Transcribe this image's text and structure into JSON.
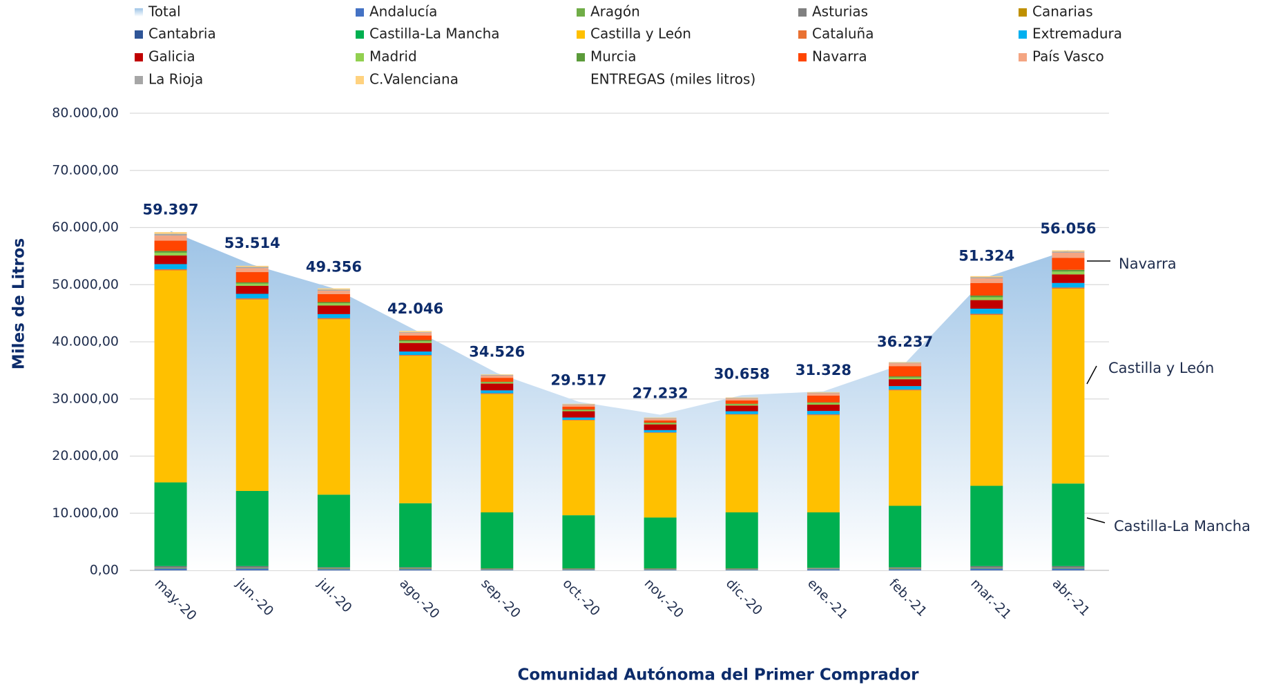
{
  "chart_data": {
    "type": "bar",
    "stacked": true,
    "categories": [
      "may.-20",
      "jun.-20",
      "jul.-20",
      "ago.-20",
      "sep.-20",
      "oct.-20",
      "nov.-20",
      "dic.-20",
      "ene.-21",
      "feb.-21",
      "mar.-21",
      "abr.-21"
    ],
    "series": [
      {
        "name": "Total",
        "type": "area",
        "color": "#9dc3e6",
        "values": [
          59397,
          53514,
          49356,
          42046,
          34526,
          29517,
          27232,
          30658,
          31328,
          36237,
          51324,
          56056
        ],
        "value_labels": [
          "59.397",
          "53.514",
          "49.356",
          "42.046",
          "34.526",
          "29.517",
          "27.232",
          "30.658",
          "31.328",
          "36.237",
          "51.324",
          "56.056"
        ]
      },
      {
        "name": "Andalucía",
        "color": "#4472c4",
        "values": [
          300,
          300,
          200,
          200,
          100,
          100,
          100,
          100,
          200,
          200,
          300,
          300
        ]
      },
      {
        "name": "Aragón",
        "color": "#70ad47",
        "values": [
          100,
          100,
          100,
          100,
          50,
          50,
          50,
          50,
          50,
          100,
          100,
          100
        ]
      },
      {
        "name": "Asturias",
        "color": "#808080",
        "values": [
          200,
          200,
          150,
          150,
          100,
          100,
          100,
          100,
          100,
          150,
          200,
          200
        ]
      },
      {
        "name": "Canarias",
        "color": "#bf9000",
        "values": [
          50,
          50,
          50,
          50,
          50,
          50,
          50,
          50,
          50,
          50,
          50,
          50
        ]
      },
      {
        "name": "Cantabria",
        "color": "#2f5597",
        "values": [
          100,
          100,
          50,
          50,
          50,
          50,
          50,
          50,
          50,
          50,
          100,
          100
        ]
      },
      {
        "name": "Castilla-La Mancha",
        "color": "#00b050",
        "values": [
          14650,
          13150,
          12700,
          11200,
          9800,
          9300,
          8900,
          9800,
          9700,
          10750,
          14050,
          14450
        ]
      },
      {
        "name": "Castilla y León",
        "color": "#ffc000",
        "values": [
          37100,
          33500,
          30700,
          25800,
          20700,
          16600,
          14800,
          17100,
          17000,
          20200,
          29900,
          34100
        ]
      },
      {
        "name": "Cataluña",
        "color": "#e97132",
        "values": [
          200,
          200,
          200,
          150,
          150,
          100,
          100,
          100,
          150,
          150,
          200,
          200
        ]
      },
      {
        "name": "Extremadura",
        "color": "#00b0f0",
        "values": [
          900,
          800,
          700,
          600,
          500,
          400,
          400,
          500,
          600,
          600,
          900,
          800
        ]
      },
      {
        "name": "Galicia",
        "color": "#c00000",
        "values": [
          1500,
          1400,
          1500,
          1500,
          1200,
          1100,
          1000,
          1000,
          1100,
          1200,
          1500,
          1500
        ]
      },
      {
        "name": "Madrid",
        "color": "#92d050",
        "values": [
          500,
          400,
          400,
          300,
          200,
          200,
          200,
          200,
          300,
          300,
          500,
          500
        ]
      },
      {
        "name": "Murcia",
        "color": "#5b9b3a",
        "values": [
          300,
          200,
          200,
          200,
          100,
          100,
          100,
          100,
          100,
          200,
          300,
          300
        ]
      },
      {
        "name": "Navarra",
        "color": "#ff4500",
        "values": [
          1800,
          1800,
          1400,
          800,
          700,
          500,
          400,
          600,
          1200,
          1800,
          2200,
          2100
        ]
      },
      {
        "name": "País Vasco",
        "color": "#f4a582",
        "values": [
          900,
          700,
          600,
          500,
          400,
          300,
          300,
          300,
          400,
          500,
          800,
          900
        ]
      },
      {
        "name": "La Rioja",
        "color": "#a6a6a6",
        "values": [
          300,
          200,
          200,
          100,
          100,
          100,
          100,
          100,
          100,
          100,
          200,
          200
        ]
      },
      {
        "name": "C.Valenciana",
        "color": "#ffd27f",
        "values": [
          300,
          200,
          200,
          200,
          100,
          100,
          100,
          100,
          100,
          100,
          200,
          200
        ]
      }
    ],
    "legend_extra": "ENTREGAS (miles litros)",
    "ylabel": "Miles de Litros",
    "xlabel": "Comunidad Autónoma del Primer Comprador",
    "annotations": [
      "Navarra",
      "Castilla y León",
      "Castilla-La Mancha"
    ],
    "ylim": [
      0,
      80000
    ],
    "yticks": [
      {
        "value": 0,
        "label": "0,00"
      },
      {
        "value": 10000,
        "label": "10.000,00"
      },
      {
        "value": 20000,
        "label": "20.000,00"
      },
      {
        "value": 30000,
        "label": "30.000,00"
      },
      {
        "value": 40000,
        "label": "40.000,00"
      },
      {
        "value": 50000,
        "label": "50.000,00"
      },
      {
        "value": 60000,
        "label": "60.000,00"
      },
      {
        "value": 70000,
        "label": "70.000,00"
      },
      {
        "value": 80000,
        "label": "80.000,00"
      }
    ],
    "grid": true
  }
}
